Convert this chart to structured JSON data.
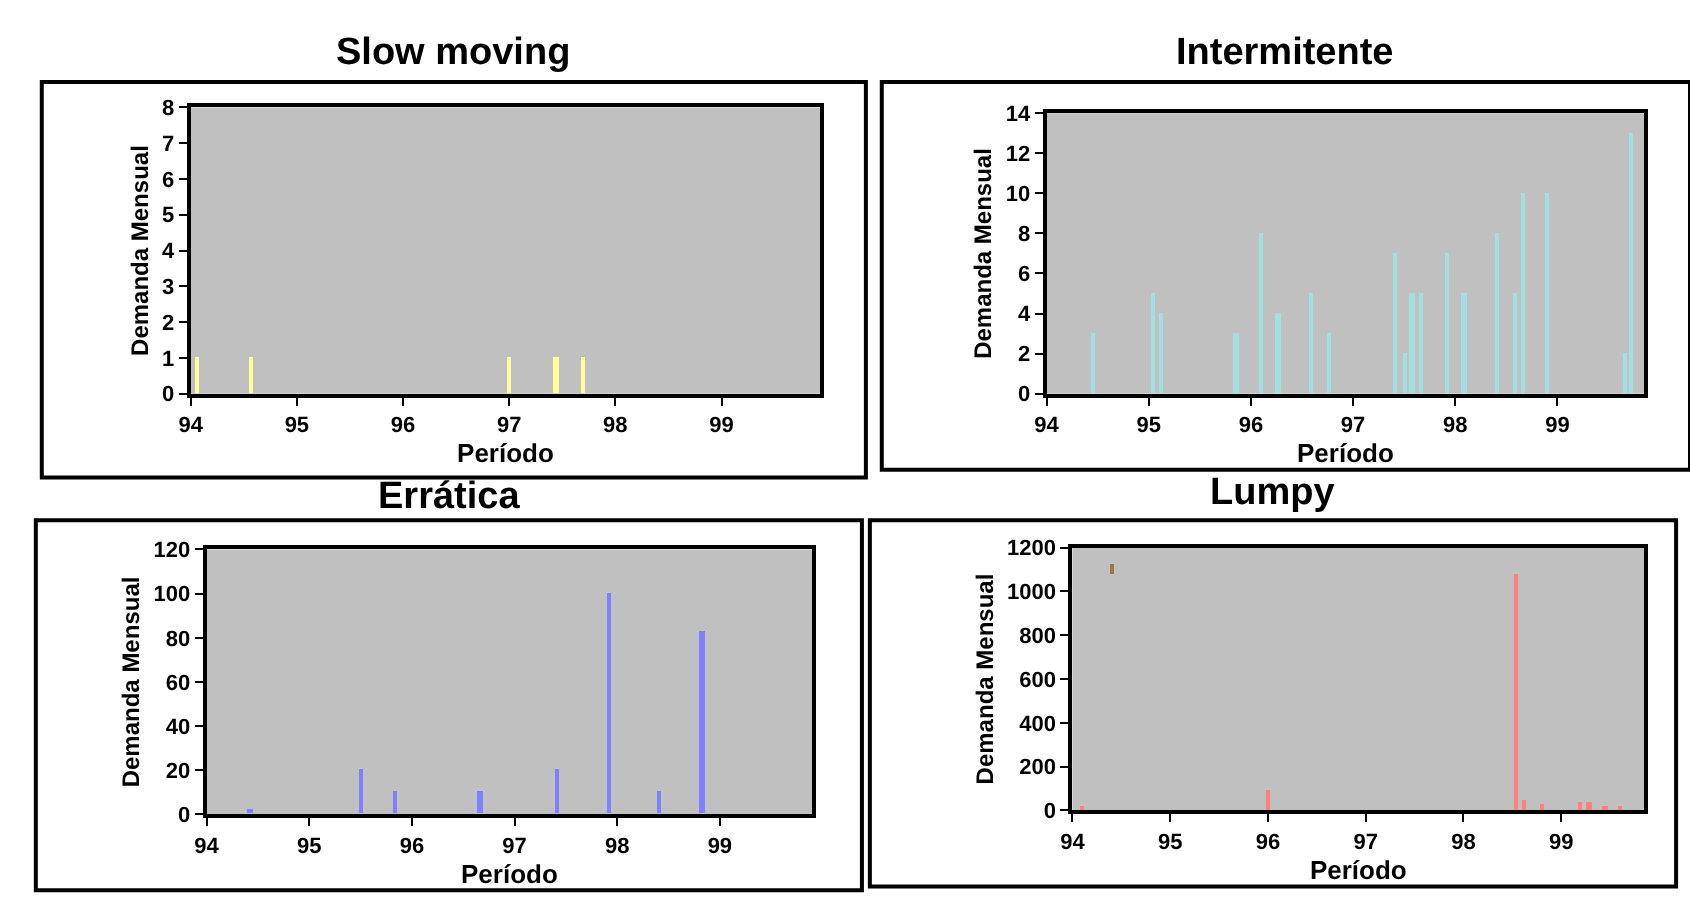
{
  "chart_data": [
    {
      "type": "bar",
      "title": "Slow moving",
      "xlabel": "Período",
      "ylabel": "Demanda Mensual",
      "color": "#ffff99",
      "x": [
        94.06,
        94.57,
        97.0,
        97.44,
        97.69
      ],
      "values": [
        1,
        1,
        1,
        1,
        1
      ],
      "xlim": [
        94,
        99.93
      ],
      "ylim": [
        0,
        8
      ],
      "xticks": [
        94,
        95,
        96,
        97,
        98,
        99
      ],
      "yticks": [
        0,
        1,
        2,
        3,
        4,
        5,
        6,
        7,
        8
      ]
    },
    {
      "type": "bar",
      "title": "Intermitente",
      "xlabel": "Período",
      "ylabel": "Demanda Mensual",
      "color": "#a0e0e0",
      "x": [
        94.45,
        95.04,
        95.12,
        95.85,
        96.1,
        96.26,
        96.59,
        96.76,
        97.41,
        97.5,
        97.57,
        97.66,
        97.92,
        98.08,
        98.4,
        98.58,
        98.66,
        98.9,
        99.65,
        99.72
      ],
      "values": [
        3,
        5,
        4,
        3,
        8,
        4,
        5,
        3,
        7,
        2,
        5,
        5,
        7,
        5,
        8,
        5,
        10,
        10,
        2,
        13
      ],
      "xlim": [
        94,
        99.85
      ],
      "ylim": [
        0,
        14
      ],
      "xticks": [
        94,
        95,
        96,
        97,
        98,
        99
      ],
      "yticks": [
        0,
        2,
        4,
        6,
        8,
        10,
        12,
        14
      ]
    },
    {
      "type": "bar",
      "title": "Errática",
      "xlabel": "Período",
      "ylabel": "Demanda Mensual",
      "color": "#8080ff",
      "x": [
        94.42,
        95.5,
        95.83,
        96.66,
        97.41,
        97.91,
        98.4,
        98.82
      ],
      "values": [
        2,
        20,
        10,
        10,
        20,
        100,
        10,
        83
      ],
      "xlim": [
        94,
        99.9
      ],
      "ylim": [
        0,
        120
      ],
      "xticks": [
        94,
        95,
        96,
        97,
        98,
        99
      ],
      "yticks": [
        0,
        20,
        40,
        60,
        80,
        100,
        120
      ]
    },
    {
      "type": "bar",
      "title": "Lumpy",
      "xlabel": "Período",
      "ylabel": "Demanda Mensual",
      "series": [
        {
          "color": "#ff8080",
          "x": [
            94.1,
            96.0,
            98.54,
            98.63,
            98.8,
            99.2,
            99.29,
            99.45,
            99.61
          ],
          "values": [
            20,
            100,
            1080,
            50,
            30,
            40,
            40,
            20,
            20
          ]
        },
        {
          "color": "#a07850",
          "x": [
            94.41
          ],
          "base": [
            1080
          ],
          "values": [
            50
          ]
        }
      ],
      "xlim": [
        94,
        99.85
      ],
      "ylim": [
        0,
        1200
      ],
      "xticks": [
        94,
        95,
        96,
        97,
        98,
        99
      ],
      "yticks": [
        0,
        200,
        400,
        600,
        800,
        1000,
        1200
      ]
    }
  ]
}
